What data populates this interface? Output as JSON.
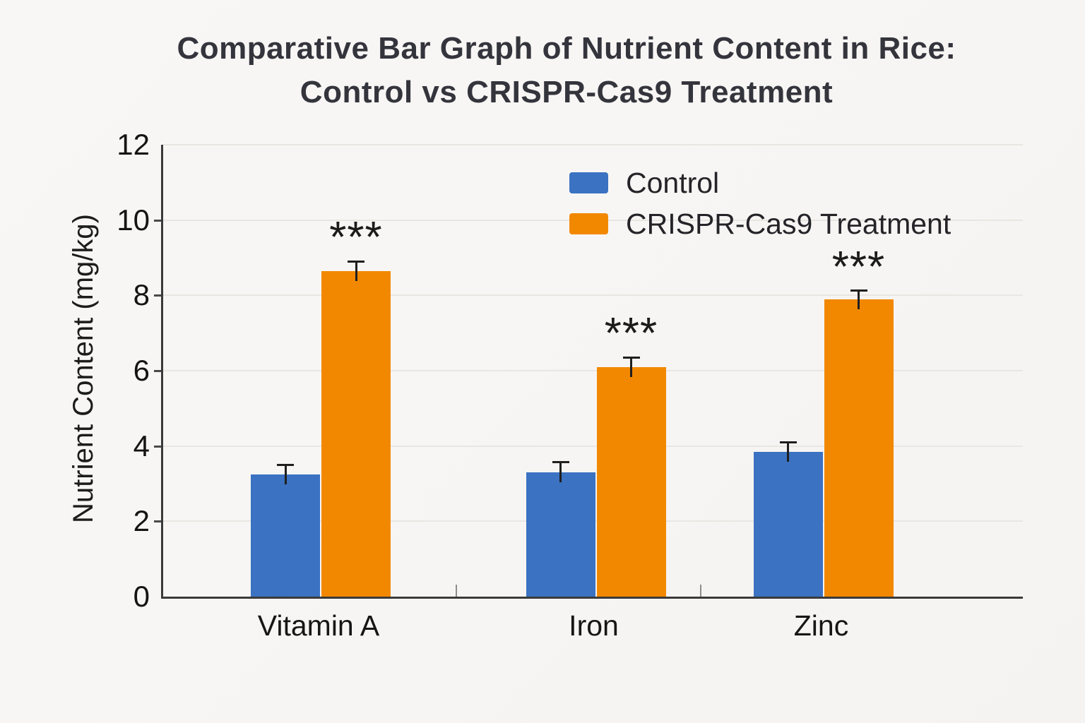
{
  "title": {
    "line1": "Comparative Bar Graph of Nutrient Content in Rice:",
    "line2": "Control vs CRISPR-Cas9 Treatment"
  },
  "legend": {
    "items": [
      {
        "label": "Control",
        "color": "#3b72c2"
      },
      {
        "label": "CRISPR-Cas9 Treatment",
        "color": "#f28800"
      }
    ]
  },
  "chart_data": {
    "type": "bar",
    "title": "Comparative Bar Graph of Nutrient Content in Rice: Control vs CRISPR-Cas9 Treatment",
    "categories": [
      "Vitamin A",
      "Iron",
      "Zinc"
    ],
    "series": [
      {
        "name": "Control",
        "color": "#3b72c2",
        "values": [
          3.25,
          3.3,
          3.85
        ],
        "errors": [
          0.25,
          0.28,
          0.25
        ],
        "significance": [
          "",
          "",
          ""
        ]
      },
      {
        "name": "CRISPR-Cas9 Treatment",
        "color": "#f28800",
        "values": [
          8.65,
          6.1,
          7.9
        ],
        "errors": [
          0.25,
          0.25,
          0.22
        ],
        "significance": [
          "***",
          "***",
          "***"
        ]
      }
    ],
    "xlabel": "",
    "ylabel": "Nutrient Content (mg/kg)",
    "ylim": [
      0,
      12
    ],
    "yticks": [
      0,
      2,
      4,
      6,
      8,
      10,
      12
    ],
    "grid": true,
    "legend_position": "upper right",
    "significance_note": "*** shown above CRISPR-Cas9 Treatment bars"
  }
}
